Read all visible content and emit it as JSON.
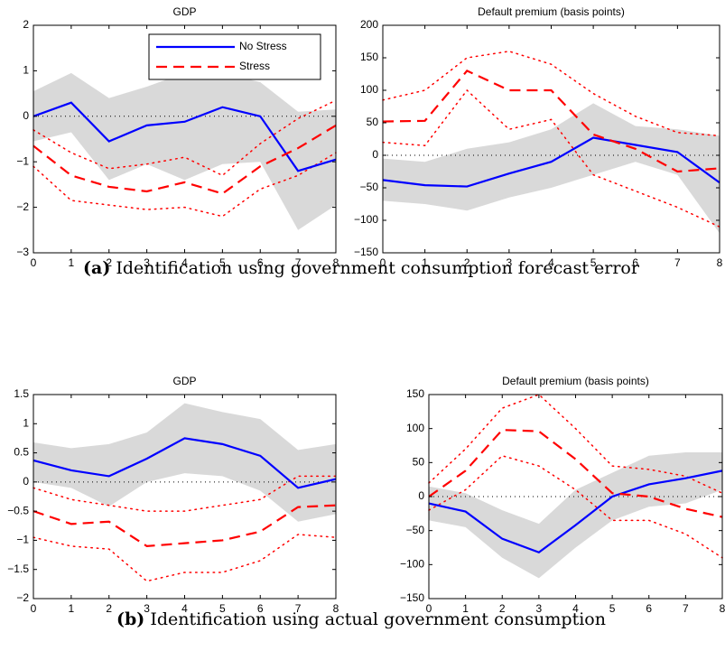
{
  "captions": [
    {
      "label": "(a)",
      "text": "Identification using government consumption forecast error"
    },
    {
      "label": "(b)",
      "text": "Identification using actual government consumption"
    }
  ],
  "chart_data": [
    {
      "type": "line",
      "title": "GDP",
      "x": [
        0,
        1,
        2,
        3,
        4,
        5,
        6,
        7,
        8
      ],
      "xlim": [
        0,
        8
      ],
      "xticks": [
        0,
        1,
        2,
        3,
        4,
        5,
        6,
        7,
        8
      ],
      "ylim": [
        -3,
        2
      ],
      "yticks": [
        {
          "value": -3,
          "label": "−3"
        },
        {
          "value": -2,
          "label": "−2"
        },
        {
          "value": -1,
          "label": "−1"
        },
        0,
        1,
        2
      ],
      "zero_line": true,
      "legend": "upper right",
      "series": [
        {
          "name": "No Stress",
          "color": "#0000ff",
          "dash": "solid",
          "band": "fill",
          "band_color": "#d9d9d9",
          "values": [
            0,
            0.3,
            -0.55,
            -0.2,
            -0.12,
            0.2,
            0,
            -1.2,
            -0.95
          ],
          "upper": [
            0.55,
            0.95,
            0.4,
            0.65,
            0.95,
            0.95,
            0.75,
            0.1,
            0.15
          ],
          "lower": [
            -0.55,
            -0.35,
            -1.4,
            -1.05,
            -1.4,
            -1.05,
            -1.0,
            -2.5,
            -1.95
          ]
        },
        {
          "name": "Stress",
          "color": "#ff0000",
          "dash": "dashed",
          "band": "dotted",
          "band_color": "#ff0000",
          "values": [
            -0.65,
            -1.3,
            -1.55,
            -1.65,
            -1.45,
            -1.7,
            -1.1,
            -0.7,
            -0.2
          ],
          "upper": [
            -0.3,
            -0.8,
            -1.15,
            -1.05,
            -0.9,
            -1.3,
            -0.6,
            -0.05,
            0.35
          ],
          "lower": [
            -1.1,
            -1.85,
            -1.95,
            -2.05,
            -2.0,
            -2.2,
            -1.6,
            -1.3,
            -0.8
          ]
        }
      ]
    },
    {
      "type": "line",
      "title": "Default premium (basis points)",
      "x": [
        0,
        1,
        2,
        3,
        4,
        5,
        6,
        7,
        8
      ],
      "xlim": [
        0,
        8
      ],
      "xticks": [
        0,
        1,
        2,
        3,
        4,
        5,
        6,
        7,
        8
      ],
      "ylim": [
        -150,
        200
      ],
      "yticks": [
        {
          "value": -150,
          "label": "−150"
        },
        {
          "value": -100,
          "label": "−100"
        },
        {
          "value": -50,
          "label": "−50"
        },
        0,
        50,
        100,
        150,
        200
      ],
      "zero_line": true,
      "series": [
        {
          "color": "#0000ff",
          "dash": "solid",
          "band": "fill",
          "band_color": "#d9d9d9",
          "values": [
            -38,
            -46,
            -48,
            -28,
            -10,
            27,
            16,
            5,
            -42
          ],
          "upper": [
            -5,
            -10,
            10,
            20,
            40,
            80,
            45,
            40,
            30
          ],
          "lower": [
            -70,
            -75,
            -85,
            -65,
            -50,
            -30,
            -10,
            -30,
            -120
          ]
        },
        {
          "color": "#ff0000",
          "dash": "dashed",
          "band": "dotted",
          "band_color": "#ff0000",
          "values": [
            52,
            53,
            130,
            100,
            100,
            32,
            10,
            -25,
            -20
          ],
          "upper": [
            85,
            100,
            150,
            160,
            140,
            95,
            60,
            35,
            30
          ],
          "lower": [
            20,
            15,
            100,
            40,
            55,
            -30,
            -55,
            -80,
            -110
          ]
        }
      ]
    },
    {
      "type": "line",
      "title": "GDP",
      "x": [
        0,
        1,
        2,
        3,
        4,
        5,
        6,
        7,
        8
      ],
      "xlim": [
        0,
        8
      ],
      "xticks": [
        0,
        1,
        2,
        3,
        4,
        5,
        6,
        7,
        8
      ],
      "ylim": [
        -2,
        1.5
      ],
      "yticks": [
        {
          "value": -2,
          "label": "−2"
        },
        {
          "value": -1.5,
          "label": "−1.5"
        },
        {
          "value": -1,
          "label": "−1"
        },
        {
          "value": -0.5,
          "label": "−0.5"
        },
        0,
        0.5,
        1,
        1.5
      ],
      "zero_line": true,
      "series": [
        {
          "color": "#0000ff",
          "dash": "solid",
          "band": "fill",
          "band_color": "#d9d9d9",
          "values": [
            0.37,
            0.2,
            0.1,
            0.4,
            0.75,
            0.65,
            0.45,
            -0.1,
            0.05
          ],
          "upper": [
            0.68,
            0.58,
            0.65,
            0.85,
            1.35,
            1.2,
            1.08,
            0.55,
            0.65
          ],
          "lower": [
            0.0,
            -0.1,
            -0.42,
            0.0,
            0.15,
            0.1,
            -0.15,
            -0.68,
            -0.55
          ]
        },
        {
          "color": "#ff0000",
          "dash": "dashed",
          "band": "dotted",
          "band_color": "#ff0000",
          "values": [
            -0.5,
            -0.72,
            -0.68,
            -1.1,
            -1.05,
            -1.0,
            -0.85,
            -0.43,
            -0.4
          ],
          "upper": [
            -0.1,
            -0.3,
            -0.4,
            -0.5,
            -0.5,
            -0.4,
            -0.3,
            0.1,
            0.1
          ],
          "lower": [
            -0.95,
            -1.1,
            -1.15,
            -1.7,
            -1.55,
            -1.55,
            -1.35,
            -0.9,
            -0.95
          ]
        }
      ]
    },
    {
      "type": "line",
      "title": "Default premium (basis points)",
      "x": [
        0,
        1,
        2,
        3,
        4,
        5,
        6,
        7,
        8
      ],
      "xlim": [
        0,
        8
      ],
      "xticks": [
        0,
        1,
        2,
        3,
        4,
        5,
        6,
        7,
        8
      ],
      "ylim": [
        -150,
        150
      ],
      "yticks": [
        {
          "value": -150,
          "label": "−150"
        },
        {
          "value": -100,
          "label": "−100"
        },
        {
          "value": -50,
          "label": "−50"
        },
        0,
        50,
        100,
        150
      ],
      "zero_line": true,
      "series": [
        {
          "color": "#0000ff",
          "dash": "solid",
          "band": "fill",
          "band_color": "#d9d9d9",
          "values": [
            -10,
            -22,
            -62,
            -82,
            -42,
            0,
            18,
            27,
            38
          ],
          "upper": [
            15,
            5,
            -20,
            -40,
            10,
            35,
            60,
            65,
            65
          ],
          "lower": [
            -35,
            -45,
            -90,
            -120,
            -75,
            -35,
            -15,
            -10,
            10
          ]
        },
        {
          "color": "#ff0000",
          "dash": "dashed",
          "band": "dotted",
          "band_color": "#ff0000",
          "values": [
            0,
            38,
            98,
            96,
            55,
            5,
            0,
            -18,
            -30
          ],
          "upper": [
            20,
            70,
            130,
            150,
            100,
            45,
            40,
            30,
            5
          ],
          "lower": [
            -20,
            10,
            60,
            45,
            10,
            -35,
            -35,
            -55,
            -90
          ]
        }
      ]
    }
  ]
}
